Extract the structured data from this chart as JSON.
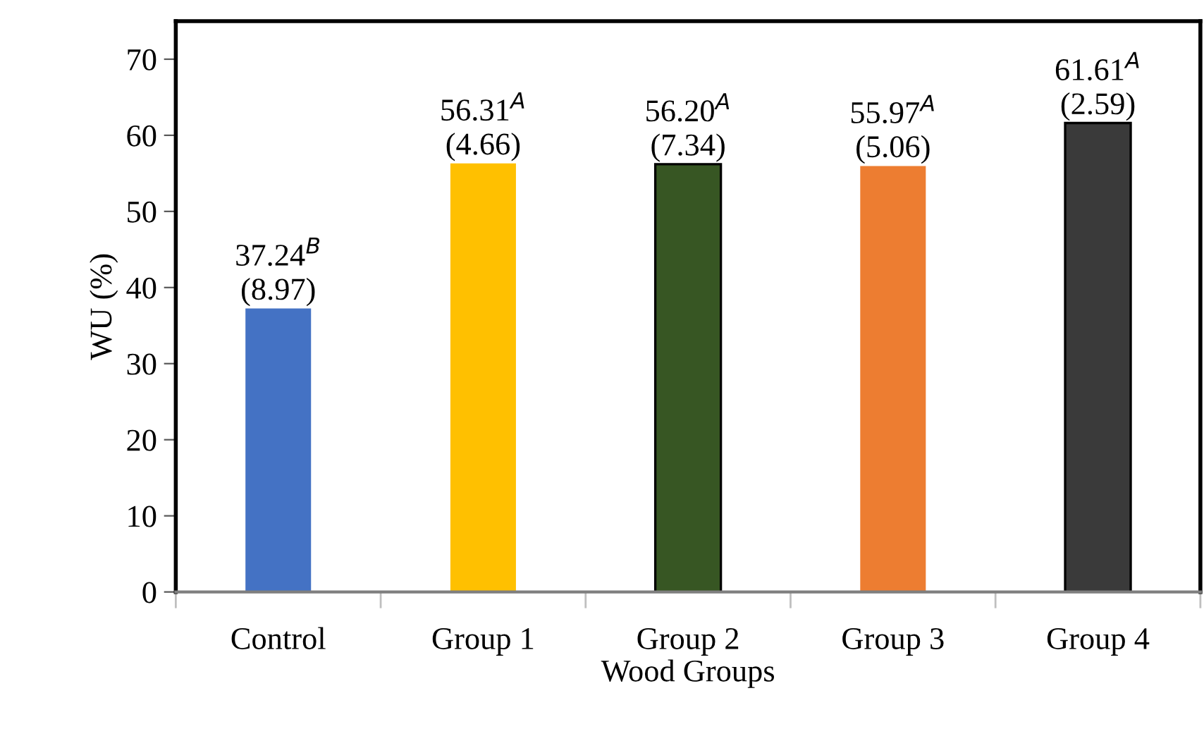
{
  "chart_data": {
    "type": "bar",
    "xlabel": "Wood Groups",
    "ylabel": "WU (%)",
    "categories": [
      "Control",
      "Group 1",
      "Group 2",
      "Group 3",
      "Group 4"
    ],
    "values": [
      37.24,
      56.31,
      56.2,
      55.97,
      61.61
    ],
    "colors": [
      "#4472c4",
      "#ffc000",
      "#375623",
      "#ed7d31",
      "#3a3a3a"
    ],
    "value_labels": [
      "37.24$^{B}$\n(8.97)",
      "56.31$^{A}$\n(4.66)",
      "56.20$^{A}$\n(7.34)",
      "55.97$^{A}$\n(5.06)",
      "61.61$^{A}$\n(2.59)"
    ],
    "ylim": [
      0,
      75
    ],
    "yticks": [
      0,
      10,
      20,
      30,
      40,
      50,
      60,
      70
    ],
    "grid": false,
    "legend": false
  }
}
